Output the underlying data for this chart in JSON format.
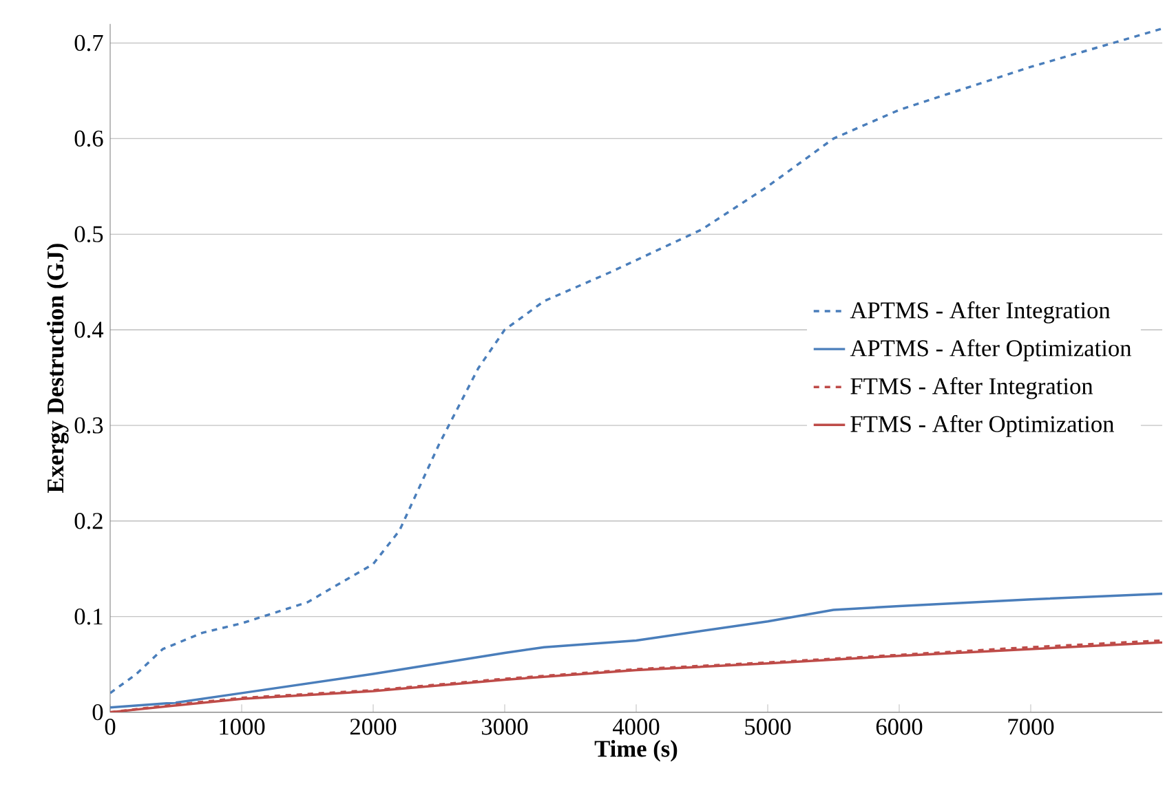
{
  "chart_data": {
    "type": "line",
    "xlabel": "Time (s)",
    "ylabel": "Exergy Destruction (GJ)",
    "xlim": [
      0,
      8000
    ],
    "xticks": [
      0,
      1000,
      2000,
      3000,
      4000,
      5000,
      6000,
      7000
    ],
    "ylim": [
      0,
      0.72
    ],
    "yticks": [
      0,
      0.1,
      0.2,
      0.3,
      0.4,
      0.5,
      0.6,
      0.7
    ],
    "grid": "y",
    "legend": "right",
    "marker": "none",
    "series": [
      {
        "name": "APTMS - After Integration",
        "color": "#4a7ebb",
        "line_style": "dashed",
        "x": [
          0,
          200,
          400,
          700,
          1000,
          1500,
          2000,
          2200,
          2500,
          2800,
          3000,
          3300,
          3800,
          4500,
          5000,
          5500,
          6000,
          7000,
          8000
        ],
        "values": [
          0.02,
          0.04,
          0.066,
          0.083,
          0.093,
          0.115,
          0.155,
          0.19,
          0.28,
          0.36,
          0.4,
          0.43,
          0.46,
          0.505,
          0.55,
          0.6,
          0.63,
          0.675,
          0.715
        ]
      },
      {
        "name": "APTMS - After Optimization",
        "color": "#4a7ebb",
        "line_style": "solid",
        "x": [
          0,
          500,
          1000,
          2000,
          3000,
          3300,
          4000,
          4500,
          5000,
          5500,
          6000,
          7000,
          8000
        ],
        "values": [
          0.005,
          0.01,
          0.02,
          0.04,
          0.062,
          0.068,
          0.075,
          0.085,
          0.095,
          0.107,
          0.111,
          0.118,
          0.124
        ]
      },
      {
        "name": "FTMS - After Integration",
        "color": "#be4b48",
        "line_style": "dashed",
        "x": [
          0,
          500,
          1000,
          2000,
          3000,
          4000,
          5000,
          6000,
          7000,
          8000
        ],
        "values": [
          0,
          0.008,
          0.015,
          0.023,
          0.035,
          0.045,
          0.052,
          0.06,
          0.068,
          0.075
        ]
      },
      {
        "name": "FTMS - After Optimization",
        "color": "#be4b48",
        "line_style": "solid",
        "x": [
          0,
          500,
          1000,
          2000,
          3000,
          4000,
          5000,
          6000,
          7000,
          8000
        ],
        "values": [
          0,
          0.007,
          0.014,
          0.022,
          0.034,
          0.044,
          0.051,
          0.059,
          0.066,
          0.073
        ]
      }
    ]
  }
}
